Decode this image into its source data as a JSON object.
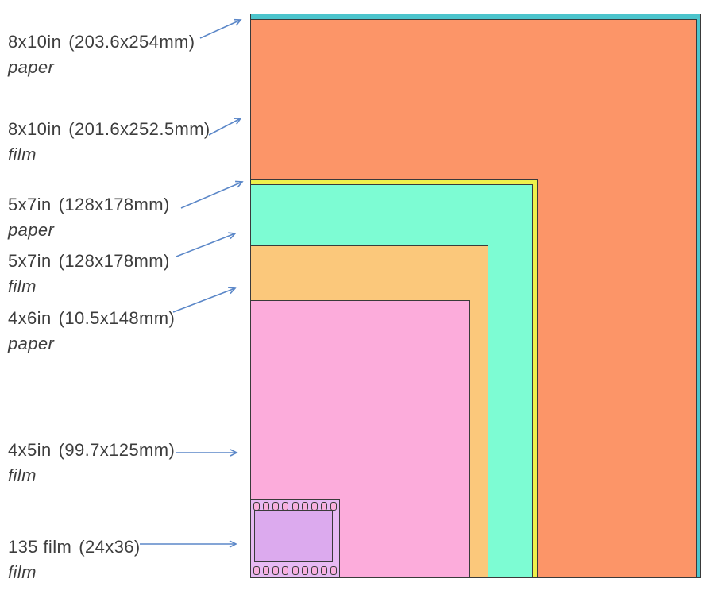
{
  "diagram": {
    "background": "#ffffff",
    "border_color": "#3a3a3a",
    "arrow_color": "#5b87c8",
    "text_color": "#3d3d3d",
    "labels": [
      {
        "name": "8x10in",
        "dims": "(203.6x254mm)",
        "type": "paper"
      },
      {
        "name": "8x10in",
        "dims": "(201.6x252.5mm)",
        "type": "film"
      },
      {
        "name": "5x7in",
        "dims": "(128x178mm)",
        "type": "paper"
      },
      {
        "name": "5x7in",
        "dims": "(128x178mm)",
        "type": "film"
      },
      {
        "name": "4x6in",
        "dims": "(10.5x148mm)",
        "type": "paper"
      },
      {
        "name": "4x5in",
        "dims": "(99.7x125mm)",
        "type": "film"
      },
      {
        "name": "135 film",
        "dims": "(24x36)",
        "type": "film"
      }
    ],
    "rects": [
      {
        "id": "8x10-paper",
        "color": "#4cc4cc"
      },
      {
        "id": "8x10-film",
        "color": "#fc9568"
      },
      {
        "id": "5x7-paper",
        "color": "#eef04a"
      },
      {
        "id": "5x7-film",
        "color": "#7dfcd3"
      },
      {
        "id": "4x6-paper",
        "color": "#fbc87b"
      },
      {
        "id": "4x5-film",
        "color": "#fcacdb"
      }
    ],
    "film_strip": {
      "strip_color": "#e7baf3",
      "frame_color": "#dcaaee",
      "hole_color": "#f9b0dd",
      "perforations_per_row": 9
    }
  }
}
